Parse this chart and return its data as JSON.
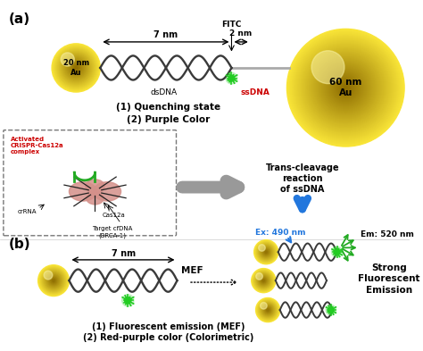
{
  "bg_color": "#ffffff",
  "title_a": "(a)",
  "title_b": "(b)",
  "label_20nm": "20 nm\nAu",
  "label_60nm": "60 nm\nAu",
  "label_7nm_a": "7 nm",
  "label_2nm": "2 nm",
  "label_FITC": "FITC",
  "label_dsDNA": "dsDNA",
  "label_ssDNA": "ssDNA",
  "label_quench1": "(1) Quenching state",
  "label_quench2": "(2) Purple Color",
  "label_activated": "Activated\nCRISPR-Cas12a\ncomplex",
  "label_crRNA": "crRNA",
  "label_Cas12a": "Cas12a",
  "label_Target": "Target cfDNA\n(BRCA-1)",
  "label_trans1": "Trans-cleavage",
  "label_trans2": "reaction",
  "label_trans3": "of ssDNA",
  "label_7nm_b": "7 nm",
  "label_MEF": "MEF",
  "label_Ex": "Ex: 490 nm",
  "label_Em": "Em: 520 nm",
  "label_strong1": "Strong",
  "label_strong2": "Fluorescent",
  "label_strong3": "Emission",
  "label_fluo1": "(1) Fluorescent emission (MEF)",
  "label_fluo2": "(2) Red-purple color (Colorimetric)",
  "gold_dark": [
    0.55,
    0.42,
    0.0
  ],
  "gold_light": [
    0.98,
    0.9,
    0.22
  ],
  "dna_color": "#3a3a3a",
  "green_color": "#22cc22",
  "arrow_color_blue": "#2277dd",
  "red_text": "#cc0000",
  "gray_arrow": "#aaaaaa"
}
